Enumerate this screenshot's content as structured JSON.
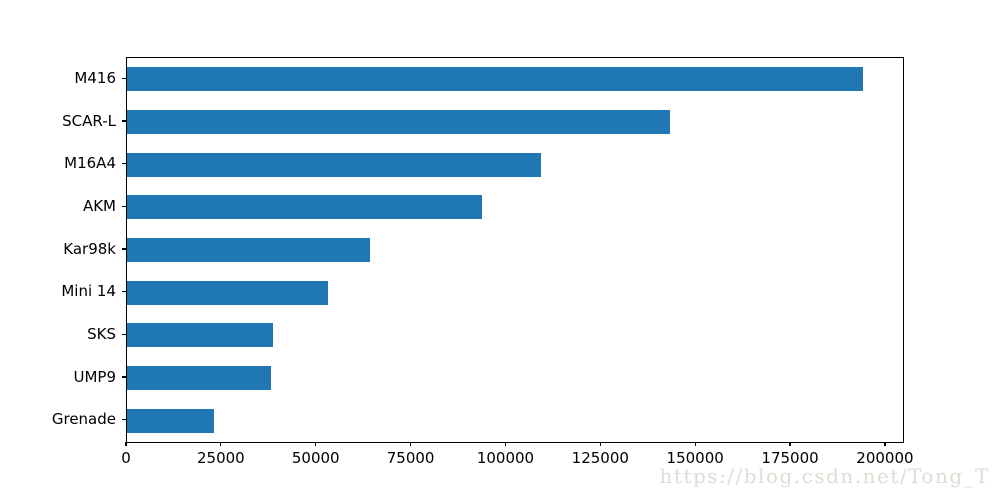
{
  "chart_data": {
    "type": "bar",
    "orientation": "horizontal",
    "title": "",
    "xlabel": "",
    "ylabel": "",
    "categories": [
      "M416",
      "SCAR-L",
      "M16A4",
      "AKM",
      "Kar98k",
      "Mini 14",
      "SKS",
      "UMP9",
      "Grenade"
    ],
    "values": [
      194000,
      143000,
      109000,
      93500,
      64000,
      53000,
      38500,
      38000,
      23000
    ],
    "x_tick_values": [
      0,
      25000,
      50000,
      75000,
      100000,
      125000,
      150000,
      175000,
      200000
    ],
    "x_tick_labels": [
      "0",
      "25000",
      "50000",
      "75000",
      "100000",
      "125000",
      "150000",
      "175000",
      "200000"
    ],
    "xlim": [
      0,
      204500
    ],
    "bar_color": "#1f77b4",
    "grid": false,
    "legend": false
  },
  "watermark": {
    "text": "https://blog.csdn.net/Tong_T",
    "color": "#dedcd4"
  },
  "colors": {
    "background": "#ffffff",
    "axis": "#000000",
    "text": "#000000"
  }
}
